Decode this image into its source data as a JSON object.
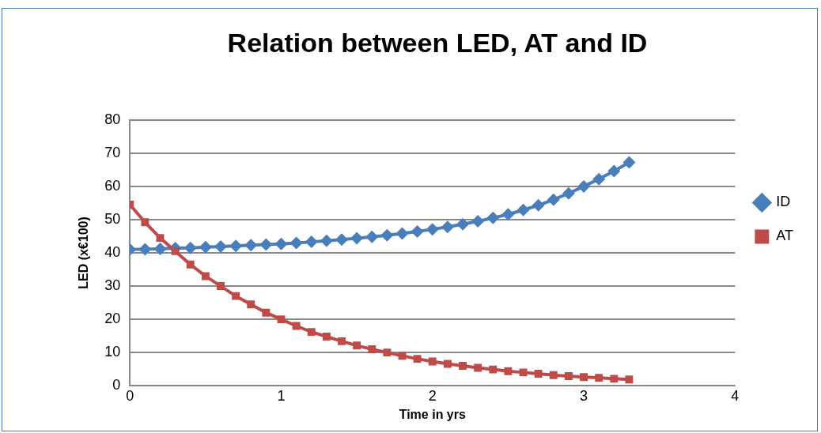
{
  "chart_data": {
    "type": "line",
    "title": "Relation between LED, AT and ID",
    "xlabel": "Time in yrs",
    "ylabel": "LED (x€100)",
    "xlim": [
      0,
      4
    ],
    "xticks": [
      0,
      1,
      2,
      3,
      4
    ],
    "ylim": [
      0,
      80
    ],
    "yticks": [
      0,
      10,
      20,
      30,
      40,
      50,
      60,
      70,
      80
    ],
    "grid": "y",
    "legend": "right",
    "x": [
      0,
      0.1,
      0.2,
      0.3,
      0.4,
      0.5,
      0.6,
      0.7,
      0.8,
      0.9,
      1,
      1.1,
      1.2,
      1.3,
      1.4,
      1.5,
      1.6,
      1.7,
      1.8,
      1.9,
      2,
      2.1,
      2.2,
      2.3,
      2.4,
      2.5,
      2.6,
      2.7,
      2.8,
      2.9,
      3,
      3.1,
      3.2,
      3.3
    ],
    "series": [
      {
        "name": "ID",
        "color": "#4a7ebb",
        "marker": "diamond",
        "values": [
          41,
          41.1,
          41.2,
          41.4,
          41.5,
          41.7,
          41.9,
          42.1,
          42.3,
          42.5,
          42.7,
          43,
          43.3,
          43.6,
          44,
          44.4,
          44.8,
          45.3,
          45.8,
          46.4,
          47.1,
          47.8,
          48.6,
          49.5,
          50.5,
          51.6,
          52.9,
          54.3,
          56,
          57.9,
          60,
          62.2,
          64.6,
          67.2
        ]
      },
      {
        "name": "AT",
        "color": "#be4b48",
        "marker": "square",
        "values": [
          54.5,
          49.2,
          44.5,
          40.5,
          36.5,
          33,
          30,
          27,
          24.5,
          22,
          20,
          18,
          16.2,
          14.8,
          13.4,
          12.1,
          11,
          10,
          9,
          8.1,
          7.3,
          6.6,
          6,
          5.4,
          4.9,
          4.4,
          4,
          3.6,
          3.2,
          2.9,
          2.6,
          2.4,
          2.1,
          1.9
        ]
      }
    ]
  }
}
